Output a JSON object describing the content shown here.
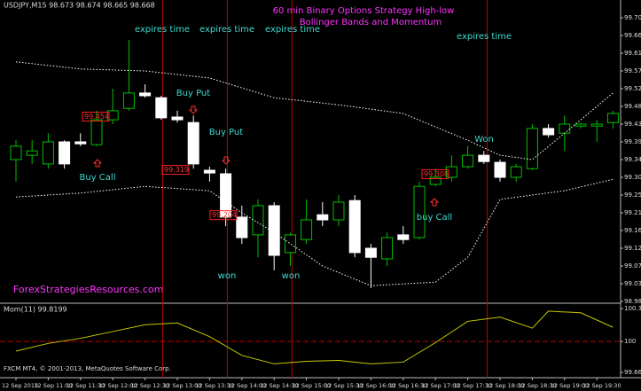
{
  "header": "USDJPY,M15  98.673 98.674 98.665 98.668",
  "title_lines": [
    "60 min Binary Options Strategy High-low",
    "Bollinger Bands and Momentum"
  ],
  "watermark": "ForexStrategiesResources.com",
  "indicator_label": "Mom(11) 99.8199",
  "copyright": "FXCM MT4, © 2001-2013, MetaQuotes Software Corp.",
  "annotations": [
    "expires time",
    "expires time",
    "expires time",
    "expires time",
    "Buy Put",
    "Buy Put",
    "Buy Call",
    "won",
    "won",
    "Won",
    "buy Call"
  ],
  "price_labels": [
    99.454,
    99.319,
    99.204,
    99.308
  ],
  "chart_data": [
    {
      "type": "candlestick",
      "up_color": "#00c000",
      "down_color": "#ffffff",
      "categories": [
        "12 Sep 2013",
        null,
        "12 Sep 11:00",
        null,
        "12 Sep 11:30",
        null,
        "12 Sep 12:00",
        null,
        "12 Sep 12:30",
        null,
        "12 Sep 13:00",
        null,
        "12 Sep 13:30",
        null,
        "12 Sep 14:00",
        null,
        "12 Sep 14:30",
        null,
        "12 Sep 15:00",
        null,
        "12 Sep 15:30",
        null,
        "12 Sep 16:00",
        null,
        "12 Sep 16:30",
        null,
        "12 Sep 17:00",
        null,
        "12 Sep 17:30",
        null,
        "12 Sep 18:00",
        null,
        "12 Sep 18:30",
        null,
        "12 Sep 19:00",
        null,
        "12 Sep 19:30",
        null
      ],
      "candles": [
        {
          "open": 99.345,
          "high": 99.394,
          "low": 99.289,
          "close": 99.379
        },
        {
          "open": 99.356,
          "high": 99.394,
          "low": 99.334,
          "close": 99.367
        },
        {
          "open": 99.334,
          "high": 99.412,
          "low": 99.322,
          "close": 99.39
        },
        {
          "open": 99.39,
          "high": 99.394,
          "low": 99.322,
          "close": 99.334
        },
        {
          "open": 99.39,
          "high": 99.412,
          "low": 99.379,
          "close": 99.385
        },
        {
          "open": 99.383,
          "high": 99.469,
          "low": 99.379,
          "close": 99.446
        },
        {
          "open": 99.446,
          "high": 99.525,
          "low": 99.435,
          "close": 99.469
        },
        {
          "open": 99.475,
          "high": 99.649,
          "low": 99.469,
          "close": 99.514
        },
        {
          "open": 99.514,
          "high": 99.536,
          "low": 99.502,
          "close": 99.507
        },
        {
          "open": 99.502,
          "high": 99.507,
          "low": 99.446,
          "close": 99.451
        },
        {
          "open": 99.453,
          "high": 99.469,
          "low": 99.439,
          "close": 99.446
        },
        {
          "open": 99.439,
          "high": 99.457,
          "low": 99.322,
          "close": 99.334
        },
        {
          "open": 99.318,
          "high": 99.327,
          "low": 99.289,
          "close": 99.311
        },
        {
          "open": 99.309,
          "high": 99.322,
          "low": 99.176,
          "close": 99.199
        },
        {
          "open": 99.199,
          "high": 99.228,
          "low": 99.131,
          "close": 99.147
        },
        {
          "open": 99.154,
          "high": 99.244,
          "low": 99.097,
          "close": 99.228
        },
        {
          "open": 99.228,
          "high": 99.237,
          "low": 99.064,
          "close": 99.102
        },
        {
          "open": 99.109,
          "high": 99.16,
          "low": 99.075,
          "close": 99.154
        },
        {
          "open": 99.142,
          "high": 99.244,
          "low": 99.131,
          "close": 99.192
        },
        {
          "open": 99.205,
          "high": 99.237,
          "low": 99.176,
          "close": 99.192
        },
        {
          "open": 99.192,
          "high": 99.255,
          "low": 99.176,
          "close": 99.237
        },
        {
          "open": 99.241,
          "high": 99.255,
          "low": 99.097,
          "close": 99.109
        },
        {
          "open": 99.12,
          "high": 99.131,
          "low": 99.019,
          "close": 99.097
        },
        {
          "open": 99.093,
          "high": 99.16,
          "low": 99.075,
          "close": 99.147
        },
        {
          "open": 99.154,
          "high": 99.176,
          "low": 99.131,
          "close": 99.142
        },
        {
          "open": 99.147,
          "high": 99.289,
          "low": 99.142,
          "close": 99.277
        },
        {
          "open": 99.282,
          "high": 99.322,
          "low": 99.277,
          "close": 99.3
        },
        {
          "open": 99.3,
          "high": 99.356,
          "low": 99.289,
          "close": 99.327
        },
        {
          "open": 99.327,
          "high": 99.379,
          "low": 99.322,
          "close": 99.356
        },
        {
          "open": 99.356,
          "high": 99.367,
          "low": 99.334,
          "close": 99.34
        },
        {
          "open": 99.338,
          "high": 99.345,
          "low": 99.289,
          "close": 99.3
        },
        {
          "open": 99.3,
          "high": 99.334,
          "low": 99.289,
          "close": 99.327
        },
        {
          "open": 99.322,
          "high": 99.435,
          "low": 99.318,
          "close": 99.424
        },
        {
          "open": 99.424,
          "high": 99.435,
          "low": 99.401,
          "close": 99.408
        },
        {
          "open": 99.412,
          "high": 99.457,
          "low": 99.367,
          "close": 99.435
        },
        {
          "open": 99.43,
          "high": 99.439,
          "low": 99.424,
          "close": 99.435
        },
        {
          "open": 99.43,
          "high": 99.446,
          "low": 99.39,
          "close": 99.435
        },
        {
          "open": 99.439,
          "high": 99.469,
          "low": 99.424,
          "close": 99.462
        }
      ],
      "series": [
        {
          "color": "#ffffff",
          "x": [
            0,
            4,
            8,
            12,
            16,
            20,
            24,
            28,
            30,
            32,
            34,
            37
          ],
          "values": [
            99.593,
            99.575,
            99.57,
            99.552,
            99.502,
            99.484,
            99.462,
            99.394,
            99.356,
            99.345,
            99.412,
            99.514
          ]
        },
        {
          "color": "#ffffff",
          "x": [
            0,
            4,
            8,
            12,
            14,
            16,
            19,
            22,
            26,
            28,
            30,
            34,
            37
          ],
          "values": [
            99.25,
            99.26,
            99.277,
            99.266,
            99.21,
            99.16,
            99.075,
            99.025,
            99.034,
            99.097,
            99.244,
            99.266,
            99.295
          ]
        }
      ],
      "ylim": [
        98.985,
        99.75
      ],
      "yticks": [
        {
          "value": 99.705,
          "label": "99.705"
        },
        {
          "value": 99.66,
          "label": "99.660"
        },
        {
          "value": 99.615,
          "label": "99.615"
        },
        {
          "value": 99.57,
          "label": "99.570"
        },
        {
          "value": 99.525,
          "label": "99.525"
        },
        {
          "value": 99.48,
          "label": "99.480"
        },
        {
          "value": 99.435,
          "label": "99.435"
        },
        {
          "value": 99.39,
          "label": "99.390"
        },
        {
          "value": 99.345,
          "label": "99.345"
        },
        {
          "value": 99.3,
          "label": "99.300"
        },
        {
          "value": 99.255,
          "label": "99.255"
        },
        {
          "value": 99.21,
          "label": "99.210"
        },
        {
          "value": 99.165,
          "label": "99.165"
        },
        {
          "value": 99.12,
          "label": "99.120"
        },
        {
          "value": 99.075,
          "label": "99.075"
        },
        {
          "value": 99.03,
          "label": "99.030"
        },
        {
          "value": 98.985,
          "label": "98.985"
        }
      ]
    },
    {
      "type": "line",
      "color": "#c8c800",
      "level_color": "#c00000",
      "x": [
        0,
        2,
        4,
        6,
        8,
        10,
        12,
        14,
        16,
        18,
        20,
        22,
        24,
        26,
        28,
        30,
        32,
        33,
        35,
        37
      ],
      "values": [
        99.896,
        99.979,
        100.034,
        100.107,
        100.18,
        100.199,
        100.052,
        99.85,
        99.758,
        99.786,
        99.795,
        99.758,
        99.777,
        99.988,
        100.217,
        100.263,
        100.144,
        100.327,
        100.309,
        100.153
      ],
      "ylim": [
        99.6665,
        100.3549
      ],
      "yticks": [
        100.3549,
        100,
        99.6665
      ]
    }
  ]
}
